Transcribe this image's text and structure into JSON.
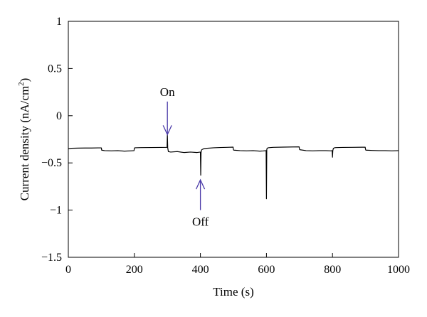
{
  "chart_data": {
    "type": "line",
    "title": "",
    "xlabel": "Time (s)",
    "ylabel": "Current density (nA/cm",
    "ylabel_sup": "2",
    "ylabel_close": ")",
    "xlim": [
      0,
      1000
    ],
    "ylim": [
      -1.5,
      1
    ],
    "x_ticks": [
      0,
      200,
      400,
      600,
      800,
      1000
    ],
    "x_tick_labels": [
      "0",
      "200",
      "400",
      "600",
      "800",
      "1000"
    ],
    "y_ticks": [
      1,
      0.5,
      0,
      -0.5,
      -1,
      -1.5
    ],
    "y_tick_labels": [
      "1",
      "0.5",
      "0",
      "−0.5",
      "−1",
      "−1.5"
    ],
    "grid": false,
    "line_color": "#000000",
    "series": [
      {
        "x": [
          0,
          10,
          30,
          50,
          70,
          90,
          100,
          101,
          110,
          130,
          150,
          170,
          190,
          199,
          200,
          201,
          220,
          250,
          280,
          299,
          300,
          301,
          302,
          303,
          310,
          330,
          350,
          370,
          390,
          400,
          401,
          402,
          403,
          404,
          410,
          420,
          440,
          460,
          480,
          499,
          500,
          501,
          520,
          540,
          560,
          580,
          590,
          599,
          600,
          601,
          602,
          605,
          620,
          650,
          680,
          699,
          700,
          701,
          720,
          740,
          760,
          780,
          795,
          799,
          800,
          801,
          802,
          803,
          806,
          810,
          830,
          860,
          890,
          899,
          900,
          901,
          920,
          940,
          960,
          980,
          1000
        ],
        "y": [
          -0.35,
          -0.345,
          -0.343,
          -0.342,
          -0.342,
          -0.341,
          -0.341,
          -0.365,
          -0.37,
          -0.372,
          -0.37,
          -0.375,
          -0.372,
          -0.37,
          -0.345,
          -0.34,
          -0.338,
          -0.337,
          -0.336,
          -0.335,
          -0.2,
          -0.34,
          -0.36,
          -0.38,
          -0.385,
          -0.38,
          -0.39,
          -0.385,
          -0.39,
          -0.385,
          -0.63,
          -0.39,
          -0.37,
          -0.36,
          -0.35,
          -0.345,
          -0.34,
          -0.337,
          -0.335,
          -0.333,
          -0.36,
          -0.365,
          -0.37,
          -0.372,
          -0.37,
          -0.375,
          -0.373,
          -0.37,
          -0.88,
          -0.36,
          -0.345,
          -0.34,
          -0.335,
          -0.333,
          -0.331,
          -0.33,
          -0.355,
          -0.36,
          -0.37,
          -0.372,
          -0.37,
          -0.37,
          -0.372,
          -0.37,
          -0.44,
          -0.37,
          -0.355,
          -0.345,
          -0.34,
          -0.338,
          -0.336,
          -0.335,
          -0.334,
          -0.334,
          -0.355,
          -0.365,
          -0.368,
          -0.37,
          -0.37,
          -0.372,
          -0.37
        ]
      }
    ],
    "annotations": [
      {
        "label": "On",
        "x": 300,
        "y_tip": -0.2,
        "y_tail": 0.15,
        "direction": "down",
        "color": "#4a3aa8"
      },
      {
        "label": "Off",
        "x": 400,
        "y_tip": -0.68,
        "y_tail": -1.0,
        "direction": "up",
        "color": "#4a3aa8"
      }
    ]
  }
}
